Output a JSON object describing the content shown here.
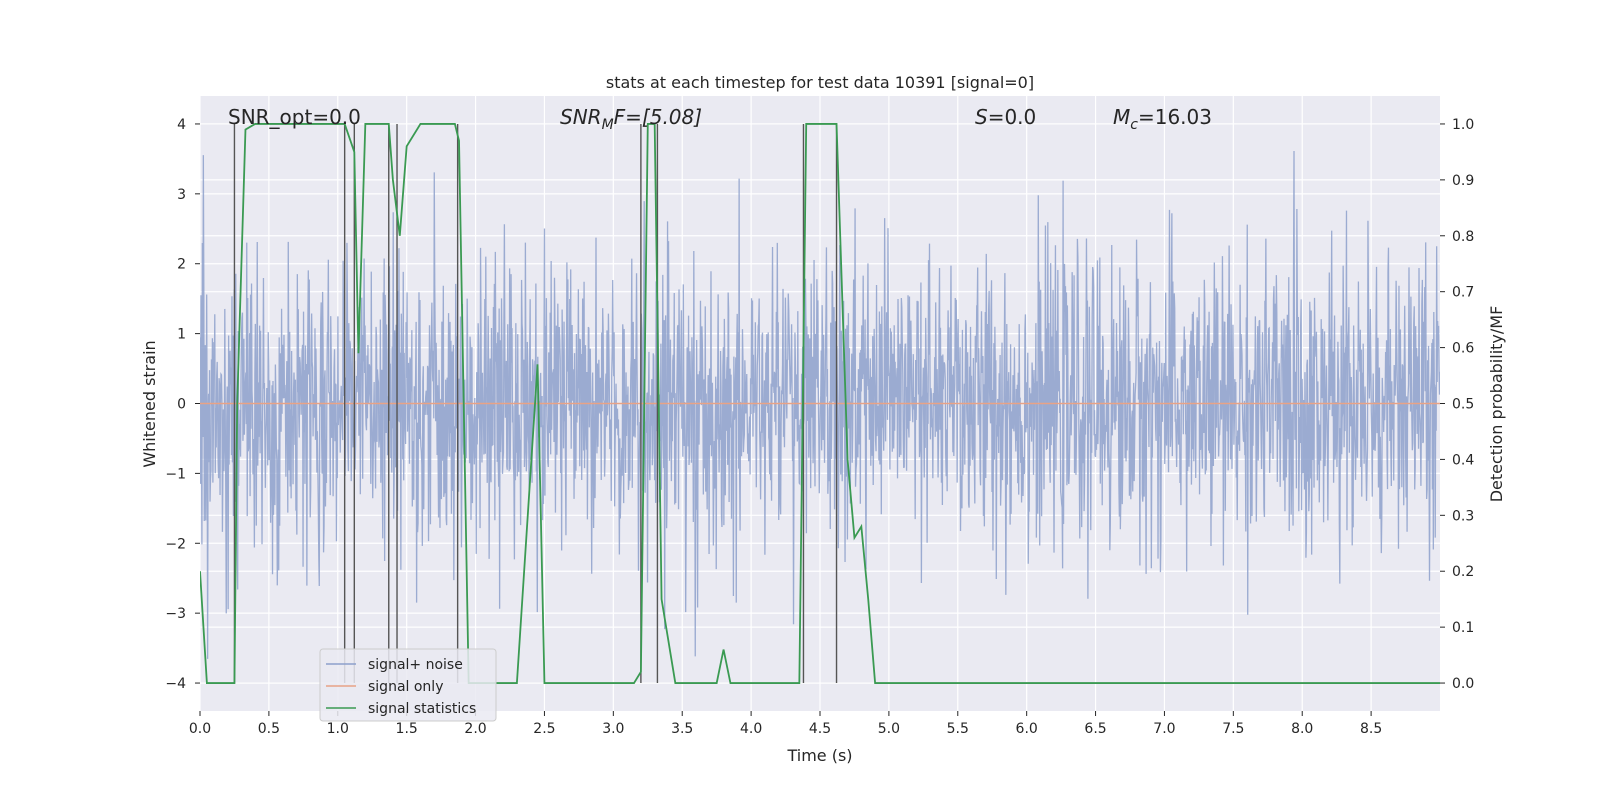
{
  "chart_data": {
    "type": "line",
    "title": "stats at each timestep for test data 10391 [signal=0]",
    "xlabel": "Time (s)",
    "ylabel_left": "Whitened strain",
    "ylabel_right": "Detection probability/MF",
    "xlim": [
      0,
      9.0
    ],
    "ylim_left": [
      -4.4,
      4.4
    ],
    "ylim_right": [
      -0.05,
      1.05
    ],
    "x_ticks": [
      "0.0",
      "0.5",
      "1.0",
      "1.5",
      "2.0",
      "2.5",
      "3.0",
      "3.5",
      "4.0",
      "4.5",
      "5.0",
      "5.5",
      "6.0",
      "6.5",
      "7.0",
      "7.5",
      "8.0",
      "8.5"
    ],
    "y_ticks_left": [
      "−4",
      "−3",
      "−2",
      "−1",
      "0",
      "1",
      "2",
      "3",
      "4"
    ],
    "y_ticks_right": [
      "0.0",
      "0.1",
      "0.2",
      "0.3",
      "0.4",
      "0.5",
      "0.6",
      "0.7",
      "0.8",
      "0.9",
      "1.0"
    ],
    "annotations": {
      "snr_opt": "SNR_opt=0.0",
      "snr_mf_sym": "SNR",
      "snr_mf_sub": "M",
      "snr_mf_rest": "F=[5.08]",
      "s_sym": "S",
      "s_rest": "=0.0",
      "mc_sym": "M",
      "mc_sub": "c",
      "mc_rest": "=16.03"
    },
    "grid": true,
    "legend_position": "lower-left",
    "series": [
      {
        "name": "signal+ noise",
        "color": "#8da0cb",
        "kind": "noise",
        "amplitude": 4.0
      },
      {
        "name": "signal only",
        "color": "#e8a286",
        "values_constant": 0.0
      },
      {
        "name": "signal statistics",
        "color": "#3a9a52",
        "axis": "right",
        "x": [
          0.0,
          0.05,
          0.25,
          0.27,
          0.33,
          0.4,
          0.6,
          0.8,
          1.05,
          1.12,
          1.15,
          1.2,
          1.25,
          1.37,
          1.4,
          1.45,
          1.5,
          1.6,
          1.85,
          1.88,
          1.95,
          2.0,
          2.3,
          2.45,
          2.5,
          3.0,
          3.15,
          3.2,
          3.25,
          3.3,
          3.35,
          3.45,
          3.75,
          3.8,
          3.85,
          4.35,
          4.4,
          4.45,
          4.55,
          4.62,
          4.7,
          4.75,
          4.8,
          4.85,
          4.9,
          9.0
        ],
        "values": [
          0.2,
          0.0,
          0.0,
          0.5,
          0.99,
          1.0,
          1.0,
          1.0,
          1.0,
          0.95,
          0.59,
          1.0,
          1.0,
          1.0,
          0.9,
          0.8,
          0.96,
          1.0,
          1.0,
          0.97,
          0.0,
          0.0,
          0.0,
          0.57,
          0.0,
          0.0,
          0.0,
          0.02,
          1.0,
          1.0,
          0.15,
          0.0,
          0.0,
          0.06,
          0.0,
          0.0,
          1.0,
          1.0,
          1.0,
          1.0,
          0.4,
          0.26,
          0.28,
          0.15,
          0.0,
          0.0
        ]
      }
    ],
    "vertical_markers_x": [
      0.25,
      1.05,
      1.12,
      1.37,
      1.43,
      1.87,
      3.2,
      3.32,
      4.38,
      4.62
    ]
  }
}
